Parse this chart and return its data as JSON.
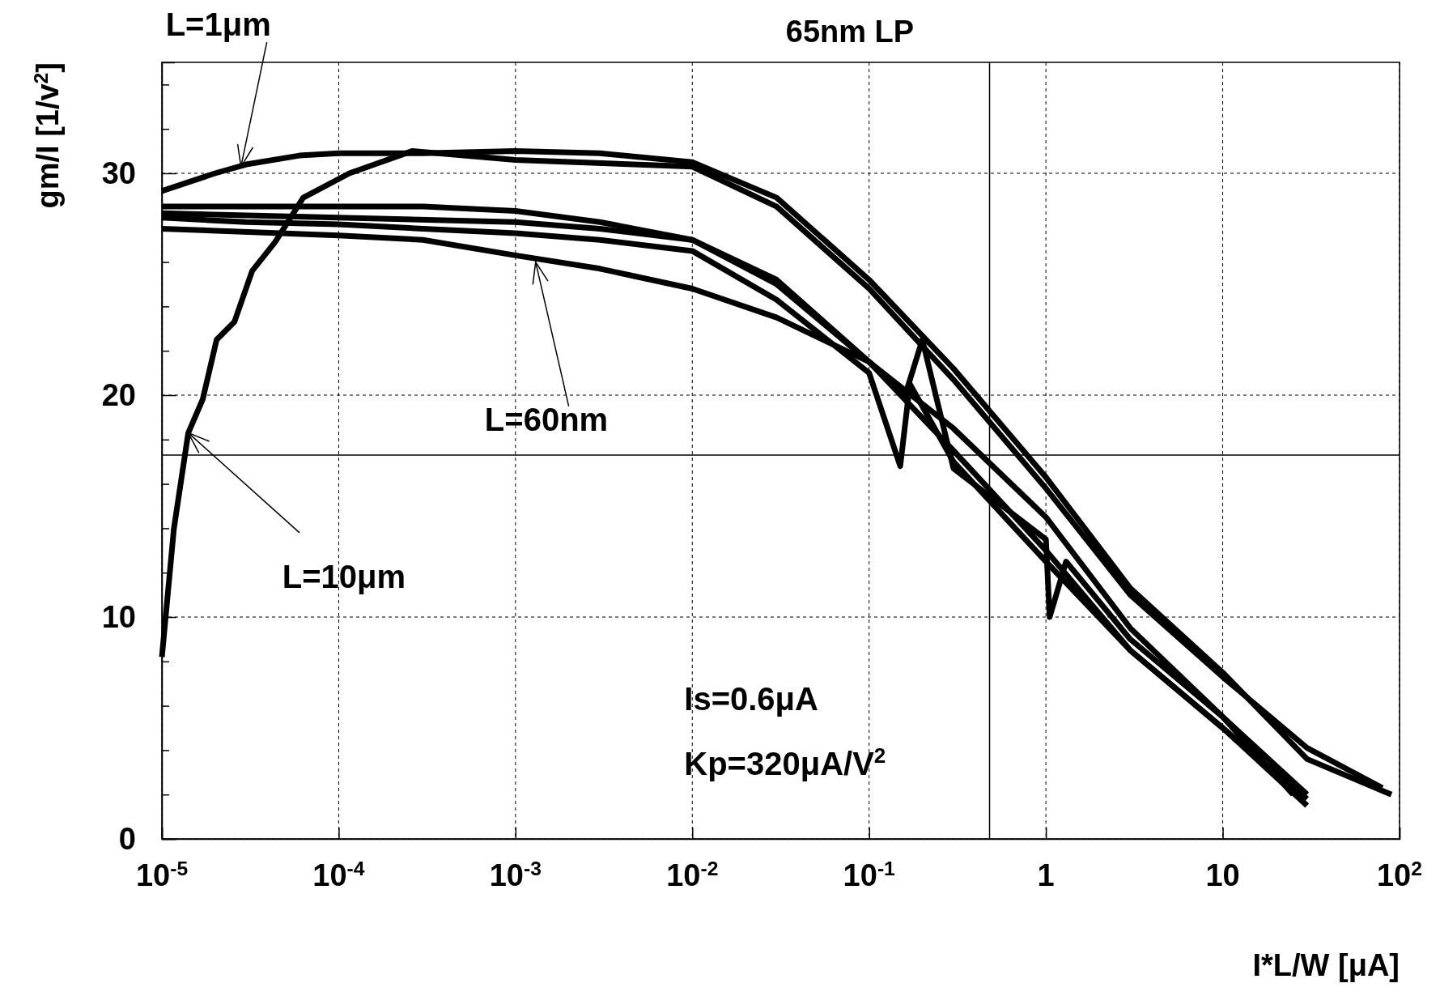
{
  "chart_data": {
    "type": "line",
    "title": "65nm LP",
    "xlabel": "I*L/W [μA]",
    "ylabel": "gm/I [1/v$^{2}$]",
    "log": "x",
    "grid": true,
    "line_style": "solid",
    "marker": "none",
    "xlim": [
      1e-05,
      100
    ],
    "ylim": [
      0,
      35
    ],
    "xticks": [
      {
        "value": 1e-05,
        "label": "10$^{-5}$"
      },
      {
        "value": 0.0001,
        "label": "10$^{-4}$"
      },
      {
        "value": 0.001,
        "label": "10$^{-3}$"
      },
      {
        "value": 0.01,
        "label": "10$^{-2}$"
      },
      {
        "value": 0.1,
        "label": "10$^{-1}$"
      },
      1,
      10,
      {
        "value": 100,
        "label": "10$^{2}$"
      }
    ],
    "yticks": [
      0,
      {
        "value": 2,
        "label": null
      },
      {
        "value": 4,
        "label": null
      },
      {
        "value": 6,
        "label": null
      },
      {
        "value": 8,
        "label": null
      },
      10,
      {
        "value": 12,
        "label": null
      },
      {
        "value": 14,
        "label": null
      },
      {
        "value": 16,
        "label": null
      },
      {
        "value": 18,
        "label": null
      },
      20,
      {
        "value": 22,
        "label": null
      },
      {
        "value": 24,
        "label": null
      },
      {
        "value": 26,
        "label": null
      },
      {
        "value": 28,
        "label": null
      },
      30,
      {
        "value": 32,
        "label": null
      },
      {
        "value": 34,
        "label": null
      }
    ],
    "series": [
      {
        "color": "#000000",
        "x": [
          1e-05,
          2e-05,
          3e-05,
          6e-05,
          0.0001,
          0.0003,
          0.001,
          0.003,
          0.01,
          0.03,
          0.1,
          0.3,
          1,
          3,
          10,
          30,
          90
        ],
        "values": [
          29.2,
          30.0,
          30.4,
          30.8,
          30.9,
          30.9,
          31.0,
          30.9,
          30.5,
          28.9,
          25.2,
          21.2,
          16.3,
          11.3,
          7.5,
          3.6,
          2.0
        ]
      },
      {
        "color": "#000000",
        "x": [
          1e-05,
          1.17e-05,
          1.41e-05,
          1.7e-05,
          2.04e-05,
          2.57e-05,
          3.24e-05,
          4.37e-05,
          6.3e-05,
          0.000115,
          0.00026,
          0.001,
          0.01,
          0.03,
          0.1,
          0.3,
          1,
          3,
          10,
          30,
          80
        ],
        "values": [
          8.2,
          14.0,
          18.3,
          19.8,
          22.5,
          23.3,
          25.6,
          26.9,
          28.9,
          30.0,
          31.0,
          30.6,
          30.3,
          28.5,
          24.8,
          20.7,
          15.8,
          11.0,
          7.3,
          4.1,
          2.3
        ]
      },
      {
        "color": "#000000",
        "x": [
          1e-05,
          3e-05,
          0.0001,
          0.0003,
          0.001,
          0.003,
          0.01,
          0.03,
          0.1,
          0.15,
          0.17,
          0.3,
          1,
          3,
          10,
          30
        ],
        "values": [
          28.0,
          27.8,
          27.7,
          27.5,
          27.3,
          27.0,
          26.5,
          24.3,
          21.0,
          16.8,
          20.5,
          17.0,
          12.5,
          8.5,
          5.0,
          1.8
        ]
      },
      {
        "color": "#000000",
        "x": [
          1e-05,
          0.0001,
          0.001,
          0.003,
          0.01,
          0.03,
          0.1,
          0.16,
          0.2,
          0.3,
          1,
          1.05,
          1.3,
          3,
          10,
          25
        ],
        "values": [
          28.2,
          28.0,
          27.8,
          27.5,
          27.0,
          25.0,
          21.5,
          20.0,
          22.5,
          16.7,
          13.5,
          10.0,
          12.5,
          9.0,
          5.5,
          2.0
        ]
      },
      {
        "color": "#000000",
        "x": [
          1e-05,
          0.0001,
          0.0003,
          0.001,
          0.003,
          0.01,
          0.03,
          0.1,
          0.3,
          1,
          3,
          10,
          30
        ],
        "values": [
          27.5,
          27.2,
          27.0,
          26.3,
          25.7,
          24.8,
          23.5,
          21.5,
          18.5,
          14.5,
          9.5,
          5.5,
          2.0
        ]
      },
      {
        "color": "#000000",
        "x": [
          1e-05,
          0.0001,
          0.0003,
          0.001,
          0.003,
          0.01,
          0.03,
          0.1,
          0.3,
          1,
          3,
          10,
          30
        ],
        "values": [
          28.5,
          28.5,
          28.5,
          28.3,
          27.8,
          27.0,
          25.2,
          21.5,
          17.5,
          13.0,
          8.5,
          5.0,
          1.5
        ]
      }
    ],
    "ref_lines": [
      {
        "axis": "x",
        "value": 0.48,
        "color": "#000000"
      },
      {
        "axis": "y",
        "value": 17.3,
        "color": "#000000"
      }
    ],
    "annotations": [
      {
        "text": "L=1μm",
        "x": 2.8e-05,
        "y": 30.3
      },
      {
        "text": "L=10μm",
        "x": 1.41e-05,
        "y": 18.3
      },
      {
        "text": "L=60nm",
        "x": 0.0013,
        "y": 26.0
      },
      "Is=0.6μA",
      "Kp=320μA/V$^{2}$"
    ]
  }
}
